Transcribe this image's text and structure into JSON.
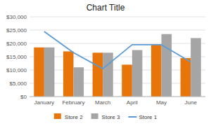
{
  "chart_data": {
    "type": "bar",
    "title": "Chart Title",
    "categories": [
      "January",
      "February",
      "March",
      "April",
      "May",
      "June"
    ],
    "series": [
      {
        "name": "Store 2",
        "type": "bar",
        "color": "#E8750A",
        "values": [
          18500,
          17000,
          16500,
          12000,
          19500,
          14500
        ]
      },
      {
        "name": "Store 3",
        "type": "bar",
        "color": "#A5A5A5",
        "values": [
          18500,
          11000,
          16500,
          17500,
          23500,
          22000
        ]
      },
      {
        "name": "Store 1",
        "type": "line",
        "color": "#5B9BD5",
        "values": [
          24500,
          16500,
          10500,
          19500,
          19500,
          13000
        ]
      }
    ],
    "ylim": [
      0,
      30000
    ],
    "yticks": [
      {
        "value": 0,
        "label": "$0"
      },
      {
        "value": 5000,
        "label": "$5,000"
      },
      {
        "value": 10000,
        "label": "$10,000"
      },
      {
        "value": 15000,
        "label": "$15,000"
      },
      {
        "value": 20000,
        "label": "$20,000"
      },
      {
        "value": 25000,
        "label": "$25,000"
      },
      {
        "value": 30000,
        "label": "$30,000"
      }
    ],
    "grid": true,
    "legend": "bottom"
  }
}
